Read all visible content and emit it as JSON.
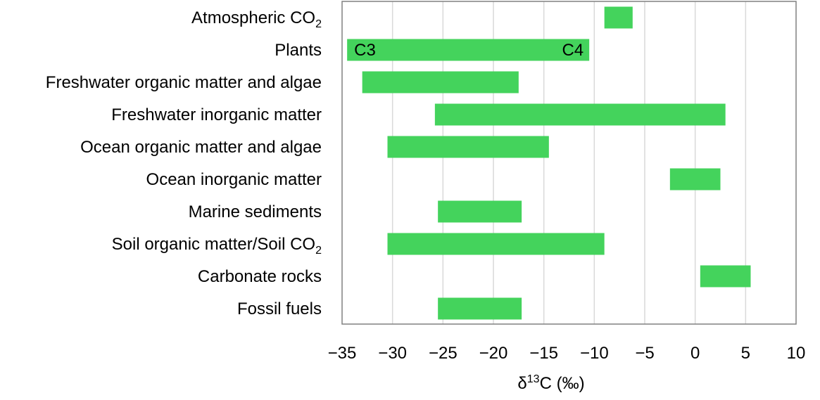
{
  "chart_data": {
    "type": "bar",
    "orientation": "horizontal",
    "range_bars": true,
    "categories": [
      {
        "name": "Atmospheric CO",
        "sub": "2"
      },
      {
        "name": "Plants",
        "sub": ""
      },
      {
        "name": "Freshwater organic matter and algae",
        "sub": ""
      },
      {
        "name": "Freshwater inorganic matter",
        "sub": ""
      },
      {
        "name": "Ocean organic matter and algae",
        "sub": ""
      },
      {
        "name": "Ocean inorganic matter",
        "sub": ""
      },
      {
        "name": "Marine sediments",
        "sub": ""
      },
      {
        "name": "Soil organic matter/Soil CO",
        "sub": "2"
      },
      {
        "name": "Carbonate rocks",
        "sub": ""
      },
      {
        "name": "Fossil fuels",
        "sub": ""
      }
    ],
    "ranges": [
      [
        -9,
        -6.2
      ],
      [
        -34.5,
        -10.5
      ],
      [
        -33,
        -17.5
      ],
      [
        -25.8,
        3
      ],
      [
        -30.5,
        -14.5
      ],
      [
        -2.5,
        2.5
      ],
      [
        -25.5,
        -17.2
      ],
      [
        -30.5,
        -9
      ],
      [
        0.5,
        5.5
      ],
      [
        -25.5,
        -17.2
      ]
    ],
    "bar_color": "#44d35c",
    "annotations": [
      {
        "category_index": 1,
        "text": "C3",
        "position": "start"
      },
      {
        "category_index": 1,
        "text": "C4",
        "position": "end"
      }
    ],
    "xlabel": {
      "pre": "δ",
      "sup": "13",
      "post": "C (‰)"
    },
    "xlim": [
      -35,
      10
    ],
    "xticks": [
      -35,
      -30,
      -25,
      -20,
      -15,
      -10,
      -5,
      0,
      5,
      10
    ],
    "xtick_labels": [
      "−35",
      "−30",
      "−25",
      "−20",
      "−15",
      "−10",
      "−5",
      "0",
      "5",
      "10"
    ],
    "grid": true,
    "legend": "none"
  }
}
